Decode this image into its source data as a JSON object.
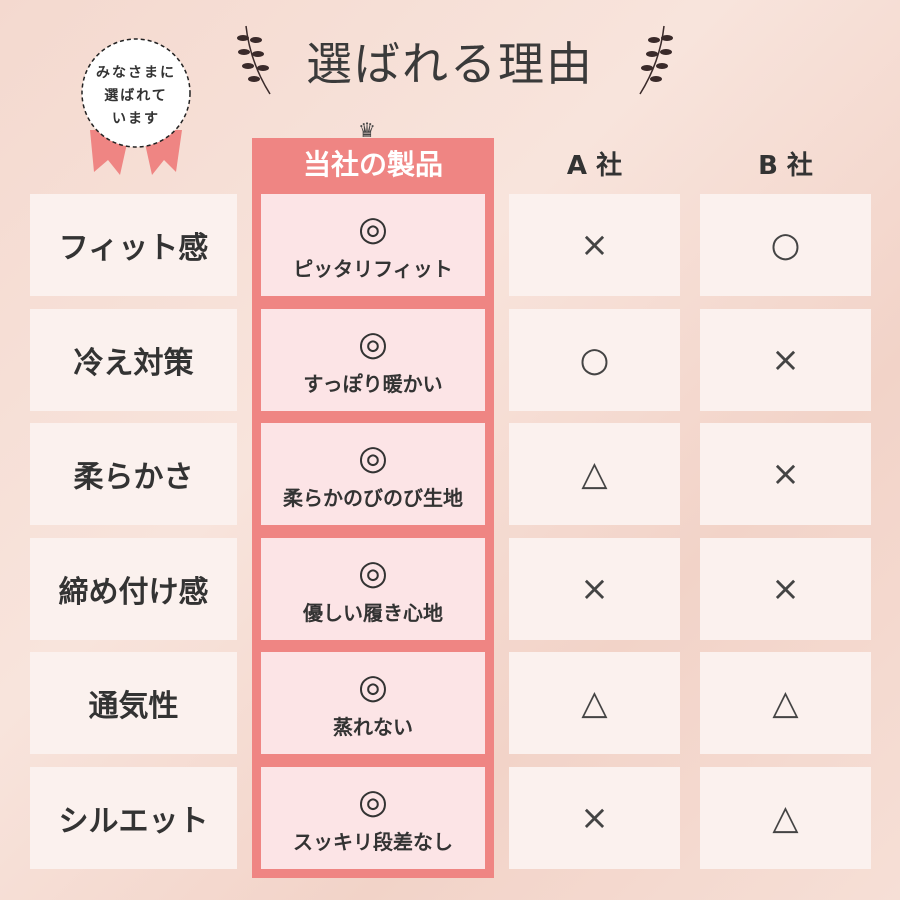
{
  "title": "選ばれる理由",
  "badge": {
    "lines": [
      "みなさまに",
      "選ばれて",
      "います"
    ]
  },
  "columns": {
    "ours": "当社の製品",
    "a": "A 社",
    "b": "B 社"
  },
  "colors": {
    "accent": "#ef8583",
    "cell_ours": "#fce4e6",
    "cell": "#fbf1ee"
  },
  "rows": [
    {
      "label": "フィット感",
      "ours_mark": "◎",
      "ours_desc": "ピッタリフィット",
      "a": "×",
      "b": "○"
    },
    {
      "label": "冷え対策",
      "ours_mark": "◎",
      "ours_desc": "すっぽり暖かい",
      "a": "○",
      "b": "×"
    },
    {
      "label": "柔らかさ",
      "ours_mark": "◎",
      "ours_desc": "柔らかのびのび生地",
      "a": "△",
      "b": "×"
    },
    {
      "label": "締め付け感",
      "ours_mark": "◎",
      "ours_desc": "優しい履き心地",
      "a": "×",
      "b": "×"
    },
    {
      "label": "通気性",
      "ours_mark": "◎",
      "ours_desc": "蒸れない",
      "a": "△",
      "b": "△"
    },
    {
      "label": "シルエット",
      "ours_mark": "◎",
      "ours_desc": "スッキリ段差なし",
      "a": "×",
      "b": "△"
    }
  ]
}
